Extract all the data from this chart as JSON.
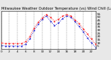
{
  "title": "Milwaukee Weather Outdoor Temperature (vs) Wind Chill (Last 24 Hours)",
  "title_fontsize": 3.8,
  "background_color": "#e8e8e8",
  "plot_bg_color": "#ffffff",
  "grid_color": "#888888",
  "line_color_temp": "#ff0000",
  "line_color_wind": "#0000cc",
  "hours": [
    0,
    1,
    2,
    3,
    4,
    5,
    6,
    7,
    8,
    9,
    10,
    11,
    12,
    13,
    14,
    15,
    16,
    17,
    18,
    19,
    20,
    21,
    22,
    23
  ],
  "temp": [
    10,
    9,
    9,
    9,
    9,
    9,
    12,
    20,
    33,
    42,
    49,
    54,
    50,
    44,
    47,
    52,
    54,
    52,
    46,
    40,
    32,
    24,
    16,
    8
  ],
  "wind_chill": [
    6,
    5,
    5,
    5,
    5,
    5,
    8,
    16,
    29,
    39,
    47,
    52,
    44,
    37,
    41,
    48,
    52,
    50,
    43,
    36,
    27,
    18,
    10,
    3
  ],
  "ylim": [
    0,
    60
  ],
  "yticks": [
    5,
    10,
    15,
    20,
    25,
    30,
    35,
    40,
    45,
    50,
    55
  ],
  "ytick_labels": [
    "5",
    "10",
    "15",
    "20",
    "25",
    "30",
    "35",
    "40",
    "45",
    "50",
    "55"
  ],
  "xlim": [
    0,
    23
  ],
  "ylabel_fontsize": 3.2,
  "xlabel_fontsize": 3.0,
  "linewidth": 0.7,
  "markersize": 1.0,
  "grid_line_style": "--",
  "grid_linewidth": 0.35,
  "vgrid_positions": [
    0,
    2,
    4,
    6,
    8,
    10,
    12,
    14,
    16,
    18,
    20,
    22
  ]
}
